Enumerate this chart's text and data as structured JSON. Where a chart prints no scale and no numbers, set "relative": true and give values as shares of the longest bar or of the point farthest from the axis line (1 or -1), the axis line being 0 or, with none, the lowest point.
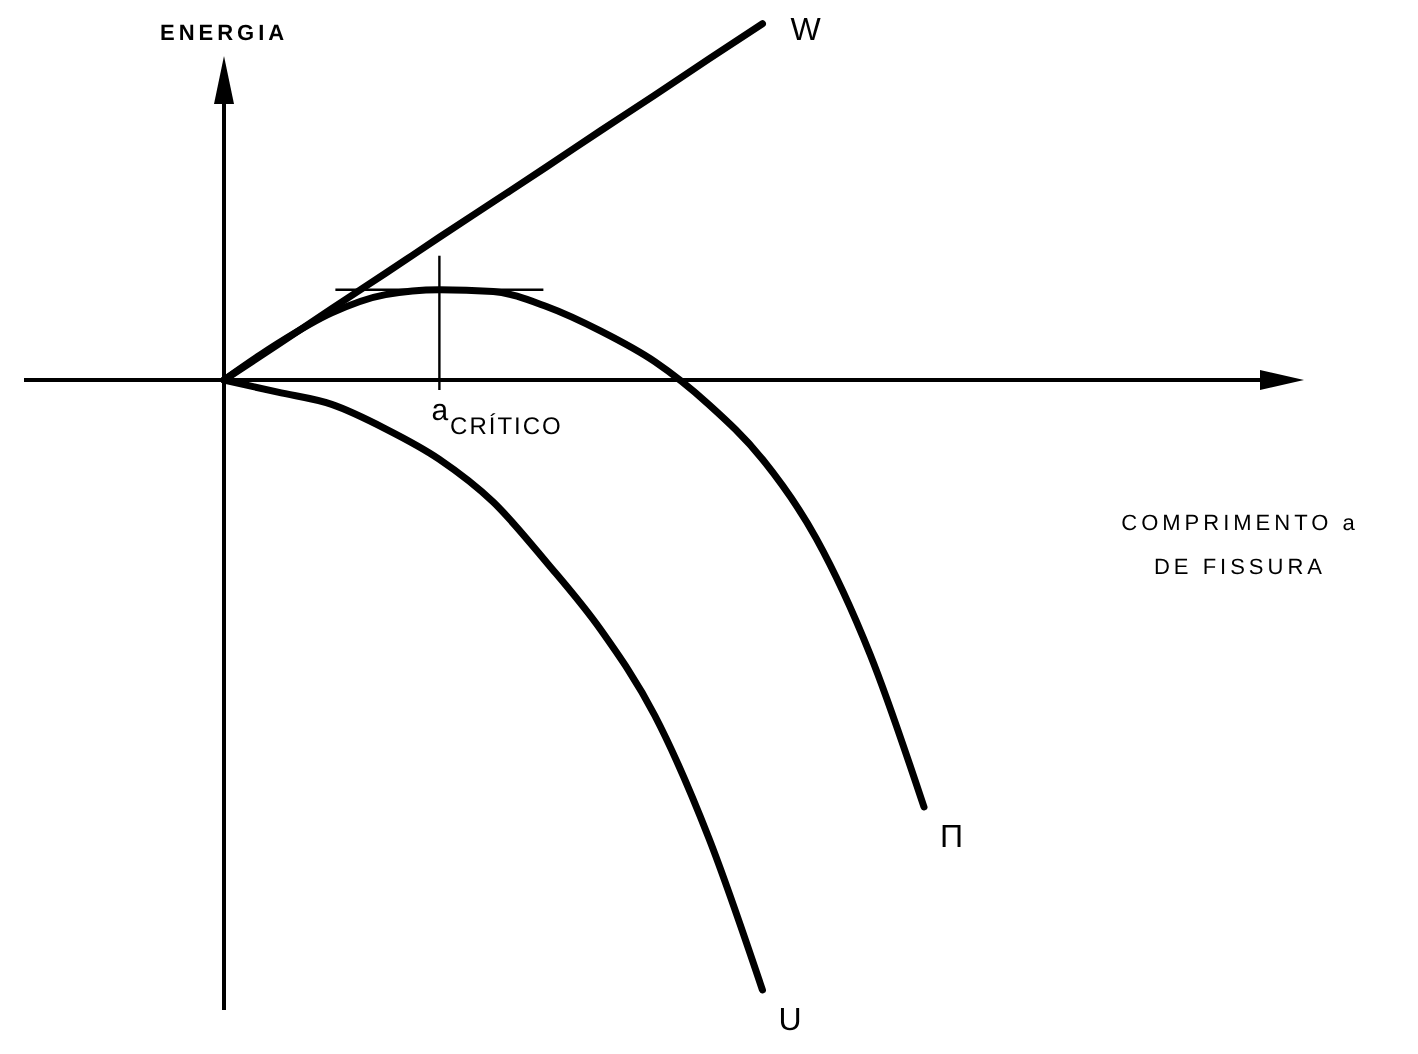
{
  "chart_data": {
    "type": "line",
    "relative": true,
    "ylabel": "ENERGIA",
    "legend": false,
    "marker": "none",
    "line_style": "solid",
    "annotations": [
      "a$_{CRÍTICO}$",
      "COMPRIMENTO a DE FISSURA"
    ],
    "categories": [
      null,
      null,
      null,
      null,
      null,
      null,
      null,
      null,
      null,
      null,
      null,
      null,
      null,
      null
    ],
    "series": [
      {
        "name": "W",
        "color": "#000000",
        "values": [
          0,
          0.058,
          0.117,
          0.175,
          0.234,
          0.292,
          0.35,
          0.409,
          0.467,
          0.526,
          0.584,
          null,
          null,
          null
        ]
      },
      {
        "name": "Π",
        "color": "#000000",
        "values": [
          0,
          0.06,
          0.11,
          0.14,
          0.148,
          0.145,
          0.12,
          0.08,
          0.03,
          -0.04,
          -0.13,
          -0.26,
          -0.45,
          -0.7
        ]
      },
      {
        "name": "U",
        "color": "#000000",
        "values": [
          0,
          -0.02,
          -0.04,
          -0.08,
          -0.13,
          -0.2,
          -0.3,
          -0.41,
          -0.55,
          -0.75,
          -1,
          null,
          null,
          null
        ]
      }
    ]
  }
}
